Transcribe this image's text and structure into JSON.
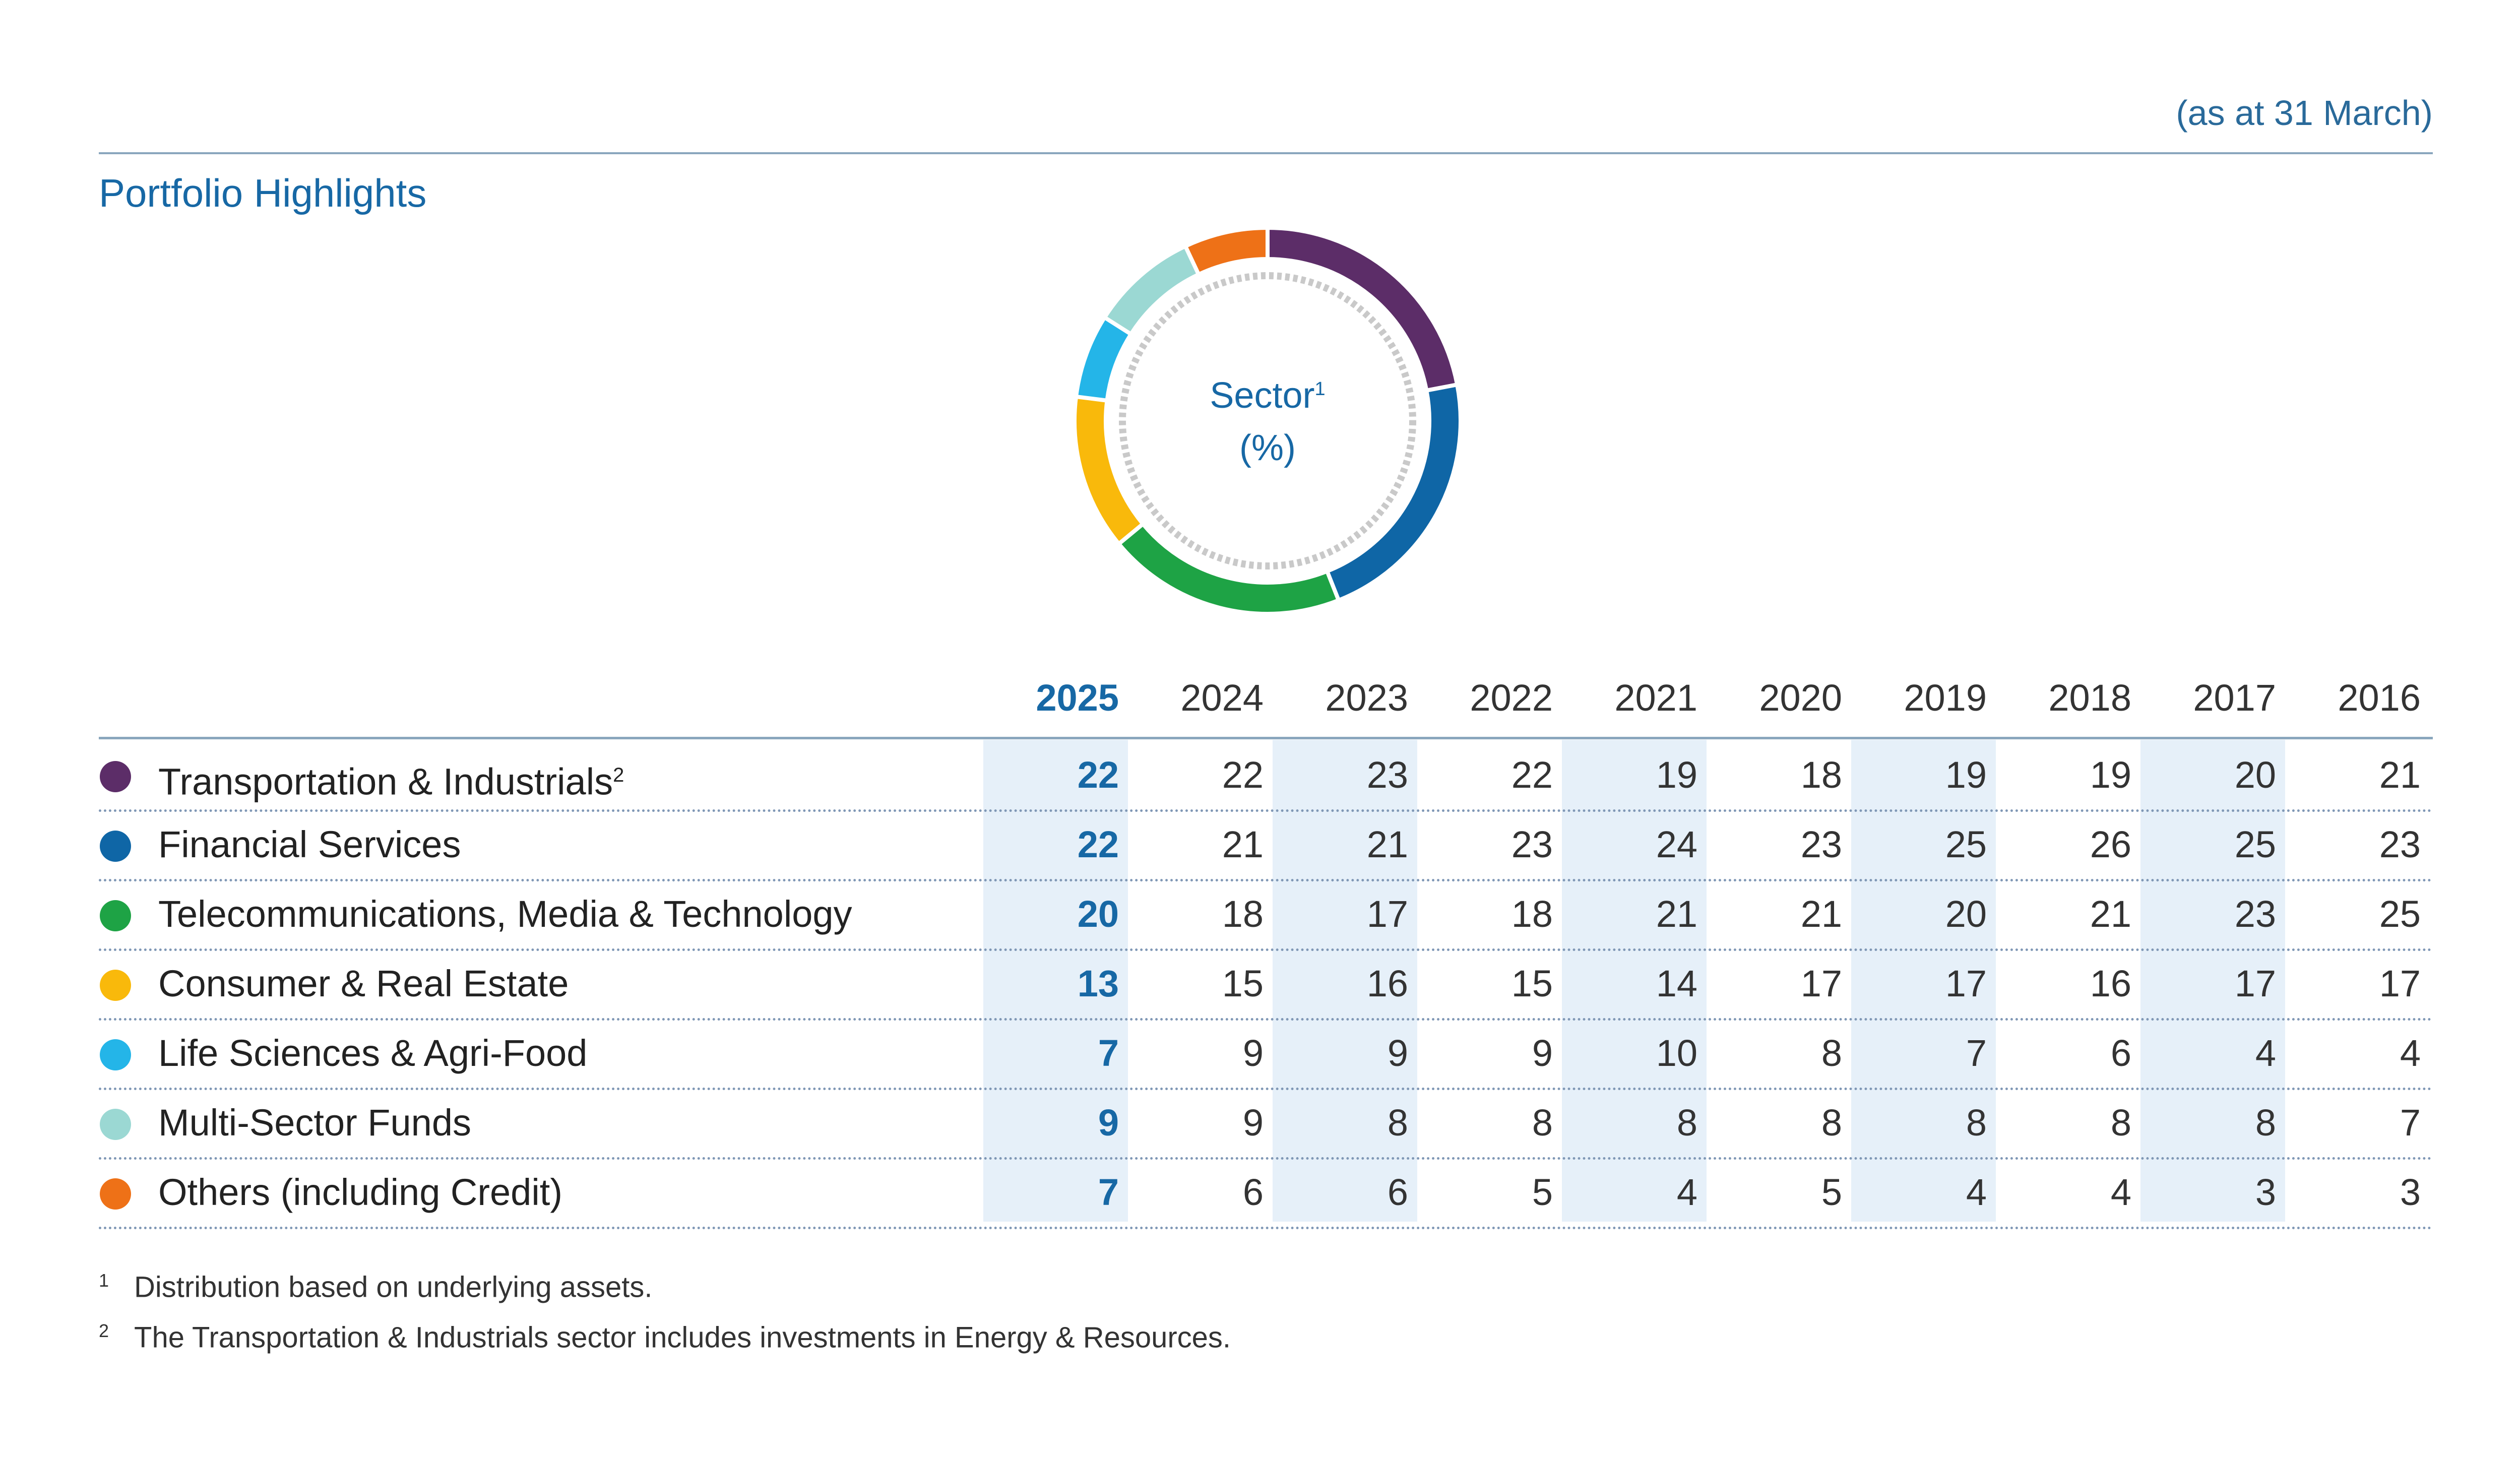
{
  "header": {
    "as_at": "(as at 31 March)",
    "title": "Portfolio Highlights"
  },
  "chart_data": {
    "type": "table",
    "donut": {
      "type": "pie",
      "style": "donut",
      "title": "Sector",
      "title_sup": "1",
      "unit": "(%)",
      "year": "2025",
      "categories": [
        "Transportation & Industrials",
        "Financial Services",
        "Telecommunications, Media & Technology",
        "Consumer & Real Estate",
        "Life Sciences & Agri-Food",
        "Multi-Sector Funds",
        "Others (including Credit)"
      ],
      "values": [
        22,
        22,
        20,
        13,
        7,
        9,
        7
      ],
      "colors": [
        "#5c2d68",
        "#0f66a6",
        "#1ea345",
        "#f9b90b",
        "#24b5e8",
        "#9bd8d3",
        "#ee7117"
      ]
    },
    "columns": [
      "2025",
      "2024",
      "2023",
      "2022",
      "2021",
      "2020",
      "2019",
      "2018",
      "2017",
      "2016"
    ],
    "rows": [
      {
        "label": "Transportation & Industrials",
        "sup": "2",
        "color": "#5c2d68",
        "values": [
          22,
          22,
          23,
          22,
          19,
          18,
          19,
          19,
          20,
          21
        ]
      },
      {
        "label": "Financial Services",
        "sup": "",
        "color": "#0f66a6",
        "values": [
          22,
          21,
          21,
          23,
          24,
          23,
          25,
          26,
          25,
          23
        ]
      },
      {
        "label": "Telecommunications, Media & Technology",
        "sup": "",
        "color": "#1ea345",
        "values": [
          20,
          18,
          17,
          18,
          21,
          21,
          20,
          21,
          23,
          25
        ]
      },
      {
        "label": "Consumer & Real Estate",
        "sup": "",
        "color": "#f9b90b",
        "values": [
          13,
          15,
          16,
          15,
          14,
          17,
          17,
          16,
          17,
          17
        ]
      },
      {
        "label": "Life Sciences & Agri-Food",
        "sup": "",
        "color": "#24b5e8",
        "values": [
          7,
          9,
          9,
          9,
          10,
          8,
          7,
          6,
          4,
          4
        ]
      },
      {
        "label": "Multi-Sector Funds",
        "sup": "",
        "color": "#9bd8d3",
        "values": [
          9,
          9,
          8,
          8,
          8,
          8,
          8,
          8,
          8,
          7
        ]
      },
      {
        "label": "Others (including Credit)",
        "sup": "",
        "color": "#ee7117",
        "values": [
          7,
          6,
          6,
          5,
          4,
          5,
          4,
          4,
          3,
          3
        ]
      }
    ]
  },
  "footnotes": [
    {
      "num": "1",
      "text": "Distribution based on underlying assets."
    },
    {
      "num": "2",
      "text": "The Transportation & Industrials sector includes investments in Energy & Resources."
    }
  ]
}
